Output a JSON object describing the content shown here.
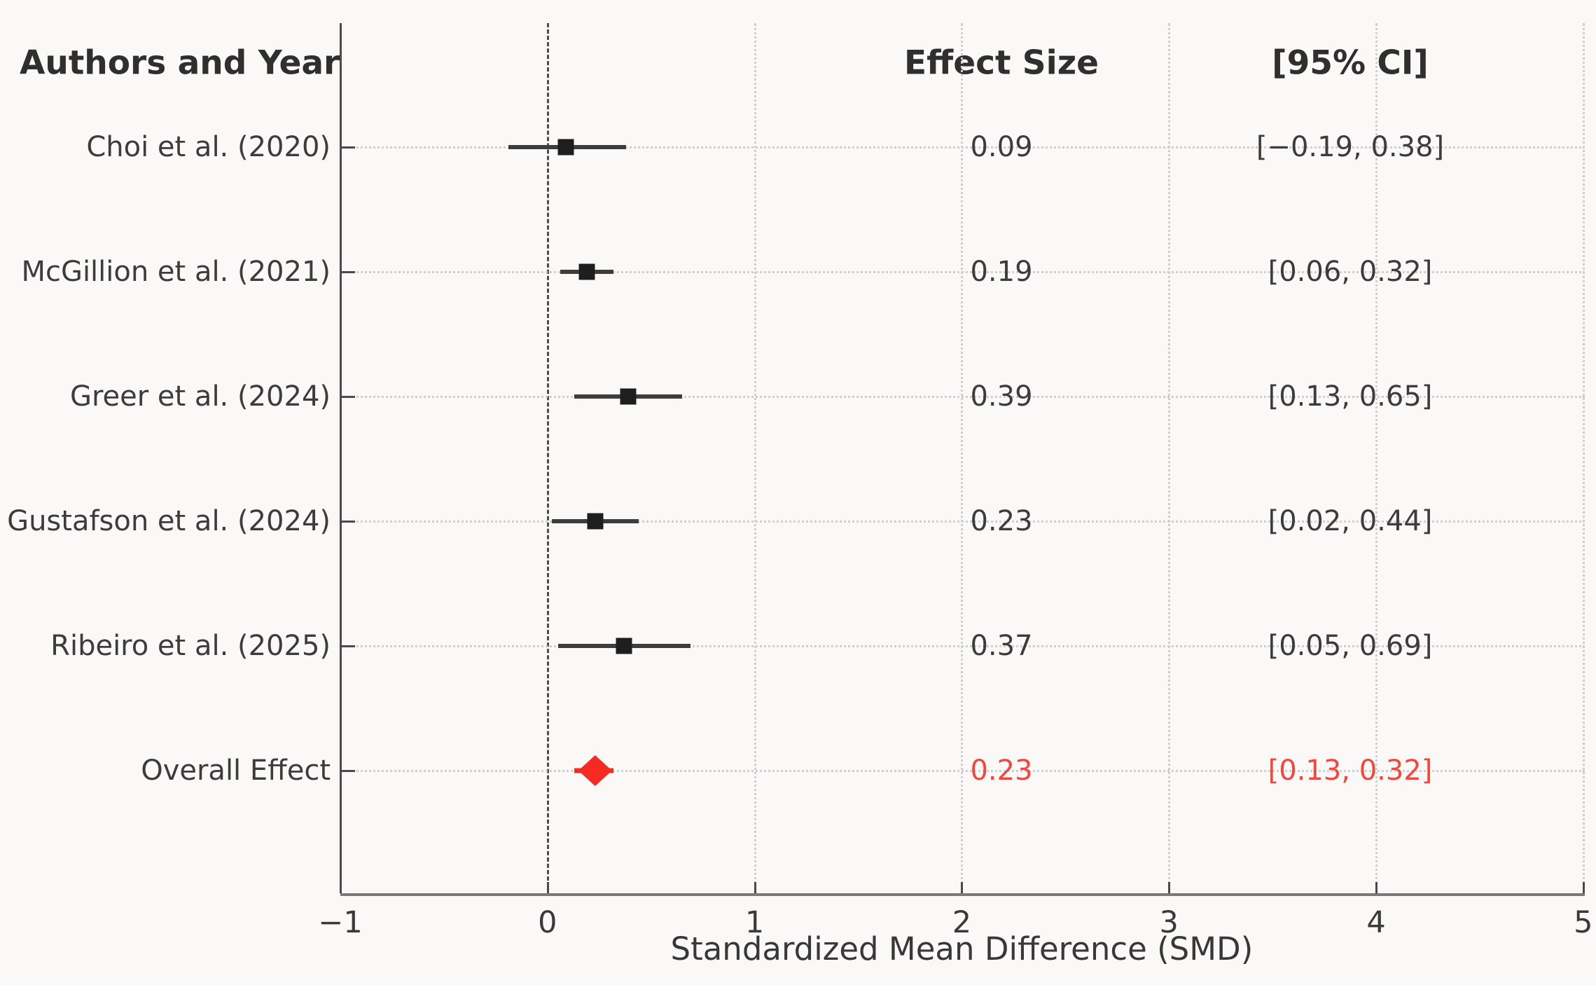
{
  "header": {
    "authors_col": "Authors and Year",
    "effect_col": "Effect Size",
    "ci_col": "[95% CI]"
  },
  "chart_data": {
    "type": "scatter",
    "variant": "forest-plot",
    "title": "",
    "xlabel": "Standardized Mean Difference (SMD)",
    "xlim": [
      -1,
      5
    ],
    "xticks": [
      {
        "value": -1,
        "label": "−1"
      },
      {
        "value": 0,
        "label": "0"
      },
      {
        "value": 1,
        "label": "1"
      },
      {
        "value": 2,
        "label": "2"
      },
      {
        "value": 3,
        "label": "3"
      },
      {
        "value": 4,
        "label": "4"
      },
      {
        "value": 5,
        "label": "5"
      }
    ],
    "zero_line_x": 0,
    "grid": {
      "horizontal": "dotted per row",
      "vertical": "dotted at integer ticks 1-5"
    },
    "rows": [
      {
        "label": "Choi et al. (2020)",
        "effect": 0.09,
        "ci_low": -0.19,
        "ci_high": 0.38,
        "effect_text": "0.09",
        "ci_text": "[−0.19, 0.38]",
        "role": "study"
      },
      {
        "label": "McGillion et al. (2021)",
        "effect": 0.19,
        "ci_low": 0.06,
        "ci_high": 0.32,
        "effect_text": "0.19",
        "ci_text": "[0.06, 0.32]",
        "role": "study"
      },
      {
        "label": "Greer et al. (2024)",
        "effect": 0.39,
        "ci_low": 0.13,
        "ci_high": 0.65,
        "effect_text": "0.39",
        "ci_text": "[0.13, 0.65]",
        "role": "study"
      },
      {
        "label": "Gustafson et al. (2024)",
        "effect": 0.23,
        "ci_low": 0.02,
        "ci_high": 0.44,
        "effect_text": "0.23",
        "ci_text": "[0.02, 0.44]",
        "role": "study"
      },
      {
        "label": "Ribeiro et al. (2025)",
        "effect": 0.37,
        "ci_low": 0.05,
        "ci_high": 0.69,
        "effect_text": "0.37",
        "ci_text": "[0.05, 0.69]",
        "role": "study"
      },
      {
        "label": "Overall Effect",
        "effect": 0.23,
        "ci_low": 0.13,
        "ci_high": 0.32,
        "effect_text": "0.23",
        "ci_text": "[0.13, 0.32]",
        "role": "overall"
      }
    ],
    "colors": {
      "study_marker": "#1e1e1e",
      "study_ci_line": "#3d3d3d",
      "overall_marker": "#f52a22",
      "overall_ci_line": "#f52a22",
      "overall_text": "#f4473c",
      "grid_dotted": "#cfcfcf",
      "zero_dash": "#4d4d4d",
      "axis_line": "#7a7a7a",
      "tick_color": "#4a4a4a",
      "header_text": "#2f2f2f",
      "body_text": "#3c3c3c",
      "background": "#faf9f8"
    },
    "legend": null
  }
}
